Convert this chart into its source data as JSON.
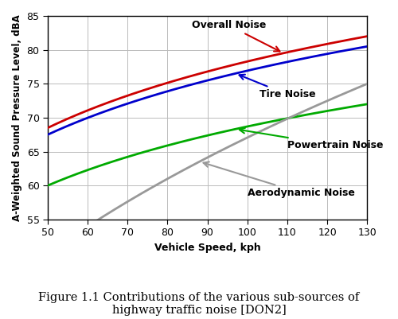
{
  "xlim": [
    50,
    130
  ],
  "ylim": [
    55,
    85
  ],
  "xticks": [
    50,
    60,
    70,
    80,
    90,
    100,
    110,
    120,
    130
  ],
  "yticks": [
    55,
    60,
    65,
    70,
    75,
    80,
    85
  ],
  "xlabel": "Vehicle Speed, kph",
  "ylabel": "A-Weighted Sound Pressure Level, dBA",
  "caption_line1": "Figure 1.1 Contributions of the various sub-sources of",
  "caption_line2": "highway traffic noise [DON2]",
  "curves": {
    "overall": {
      "color": "#cc0000",
      "label": "Overall Noise"
    },
    "tire": {
      "color": "#0000cc",
      "label": "Tire Noise"
    },
    "powertrain": {
      "color": "#00aa00",
      "label": "Powertrain Noise"
    },
    "aerodynamic": {
      "color": "#999999",
      "label": "Aerodynamic Noise"
    }
  },
  "background_color": "#ffffff",
  "grid_color": "#bbbbbb",
  "linewidth": 2.0
}
